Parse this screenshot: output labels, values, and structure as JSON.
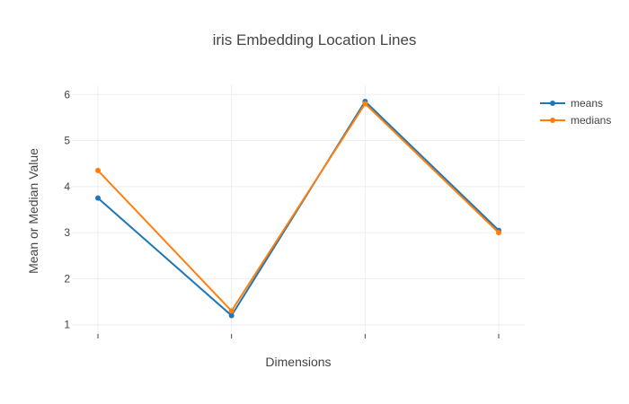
{
  "chart_data": {
    "type": "line",
    "title": "iris Embedding Location Lines",
    "xlabel": "Dimensions",
    "ylabel": "Mean or Median Value",
    "x": [
      1,
      2,
      3,
      4
    ],
    "xlim": [
      1,
      4
    ],
    "ylim": [
      0.8,
      6.2
    ],
    "yticks": [
      1,
      2,
      3,
      4,
      5,
      6
    ],
    "grid": true,
    "legend_position": "top-right",
    "series": [
      {
        "name": "means",
        "color": "#1f77b4",
        "values": [
          3.75,
          1.2,
          5.85,
          3.05
        ]
      },
      {
        "name": "medians",
        "color": "#ff7f0e",
        "values": [
          4.35,
          1.3,
          5.8,
          3.0
        ]
      }
    ]
  }
}
